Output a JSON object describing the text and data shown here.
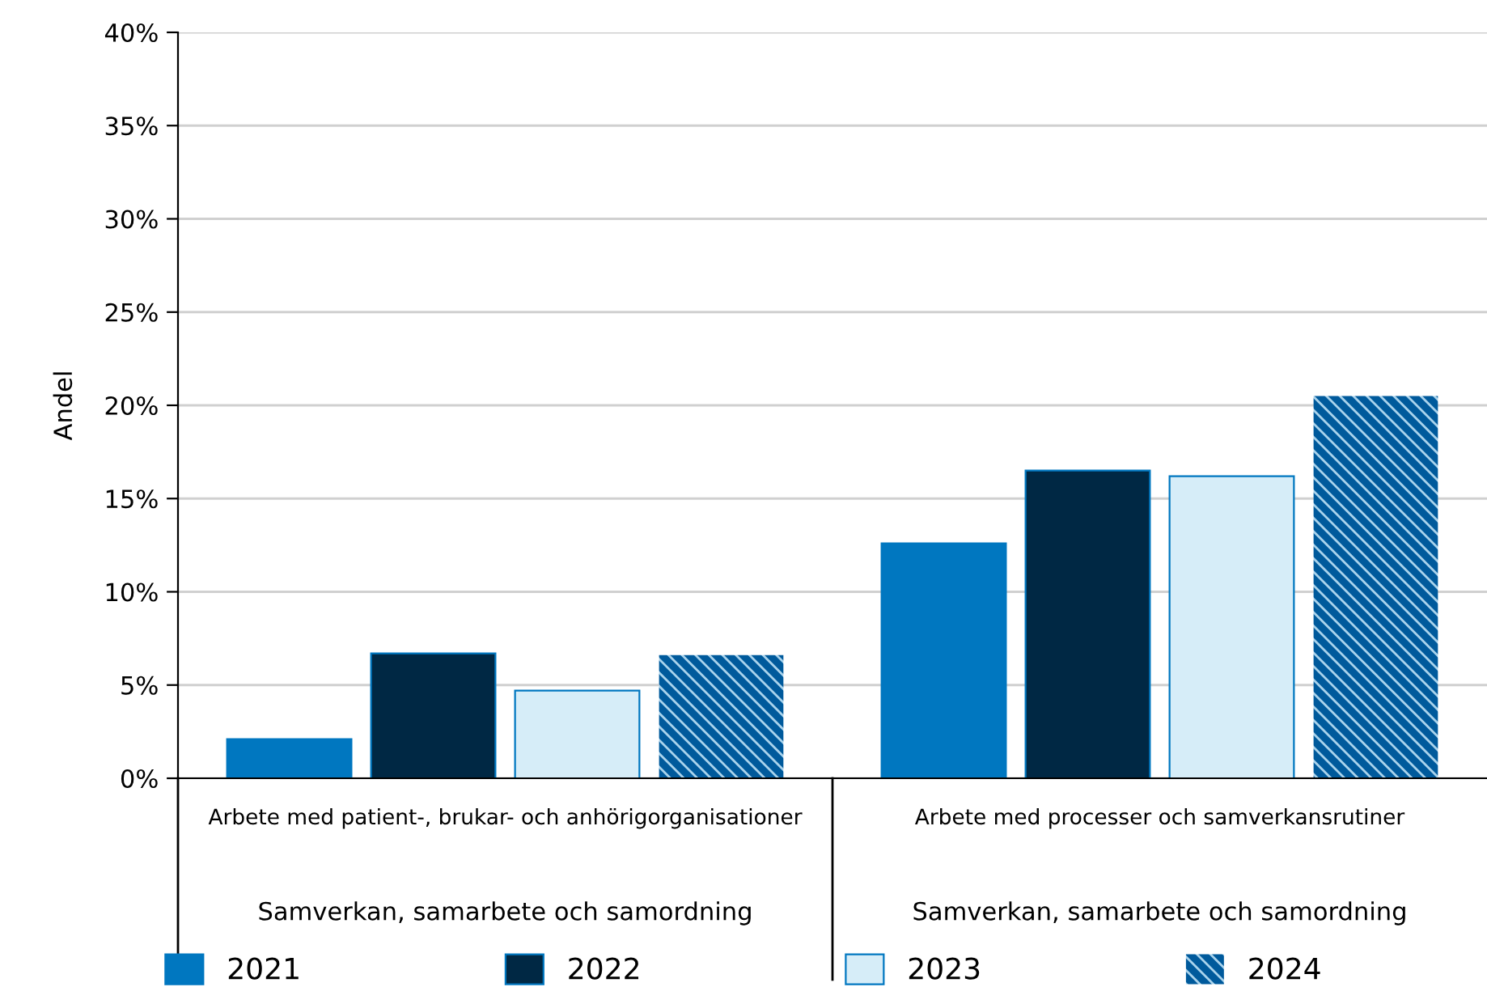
{
  "chart_data": {
    "type": "bar",
    "ylabel": "Andel",
    "categories": [
      "Arbete med patient-, brukar- och anhörigorganisationer",
      "Arbete med processer och samverkansrutiner"
    ],
    "series": [
      {
        "name": "2021",
        "color": "#0077c0",
        "values": [
          2.1,
          12.6
        ]
      },
      {
        "name": "2022",
        "color": "#002844",
        "values": [
          6.7,
          16.5
        ]
      },
      {
        "name": "2023",
        "color": "#d6edf8",
        "values": [
          4.7,
          16.2
        ]
      },
      {
        "name": "2024",
        "color": "#005a9c",
        "values": [
          6.6,
          20.5
        ]
      }
    ],
    "ylim": [
      0,
      40
    ],
    "yticks": [
      {
        "value": 0,
        "label": "0%"
      },
      {
        "value": 5,
        "label": "5%"
      },
      {
        "value": 10,
        "label": "10%"
      },
      {
        "value": 15,
        "label": "15%"
      },
      {
        "value": 20,
        "label": "20%"
      },
      {
        "value": 25,
        "label": "25%"
      },
      {
        "value": 30,
        "label": "30%"
      },
      {
        "value": 35,
        "label": "35%"
      },
      {
        "value": 40,
        "label": "40%"
      }
    ],
    "annotations": [
      "Samverkan, samarbete och samordning",
      "Samverkan, samarbete och samordning"
    ],
    "grid": "y",
    "legend": "bottom"
  }
}
